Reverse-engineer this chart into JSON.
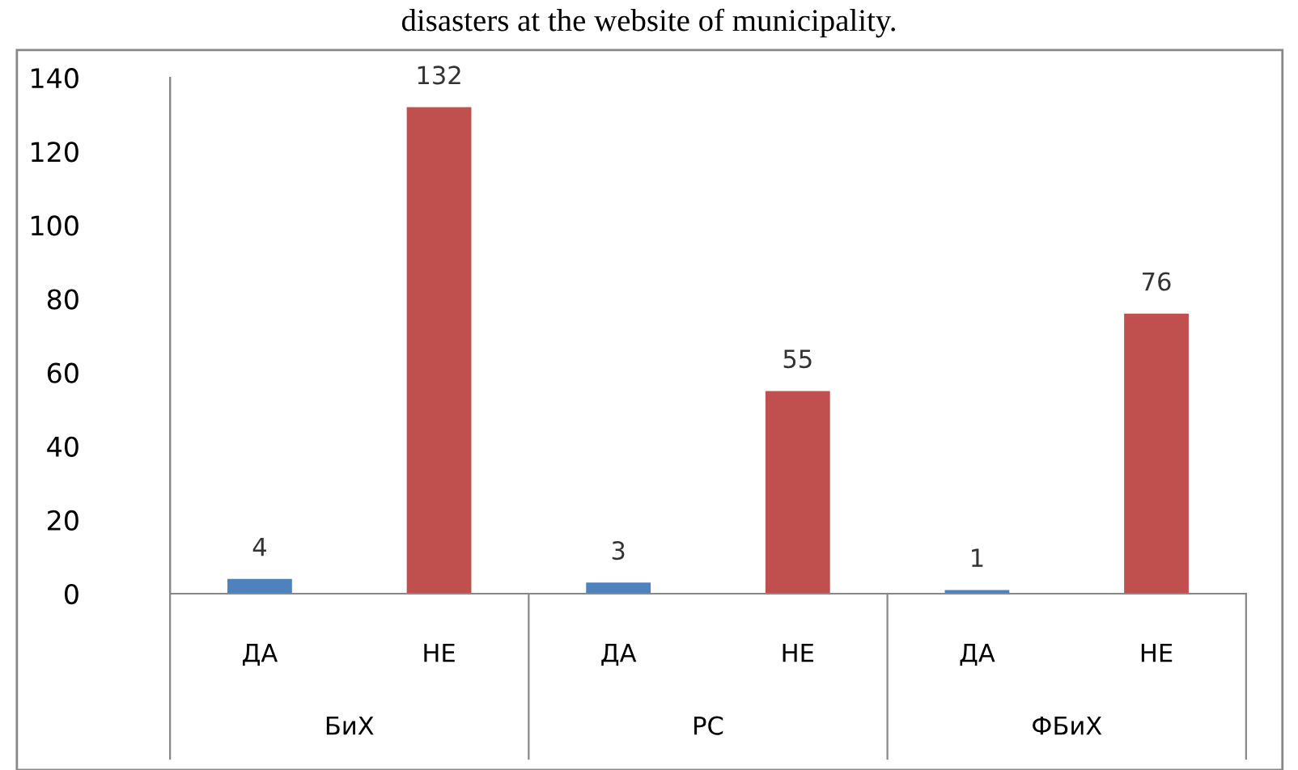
{
  "chart_data": {
    "type": "bar",
    "title": "disasters at the website of municipality.",
    "categories": [
      "ДА",
      "НЕ",
      "ДА",
      "НЕ",
      "ДА",
      "НЕ"
    ],
    "values": [
      4,
      132,
      3,
      55,
      1,
      76
    ],
    "colors": [
      "#4f81bd",
      "#c0504d",
      "#4f81bd",
      "#c0504d",
      "#4f81bd",
      "#c0504d"
    ],
    "annotations": [
      "БиХ",
      "РС",
      "ФБиХ"
    ],
    "ylim": [
      0,
      140
    ],
    "yticks": [
      0,
      20,
      40,
      60,
      80,
      100,
      120,
      140
    ],
    "data_labels": true,
    "grid": false,
    "legend": false
  }
}
